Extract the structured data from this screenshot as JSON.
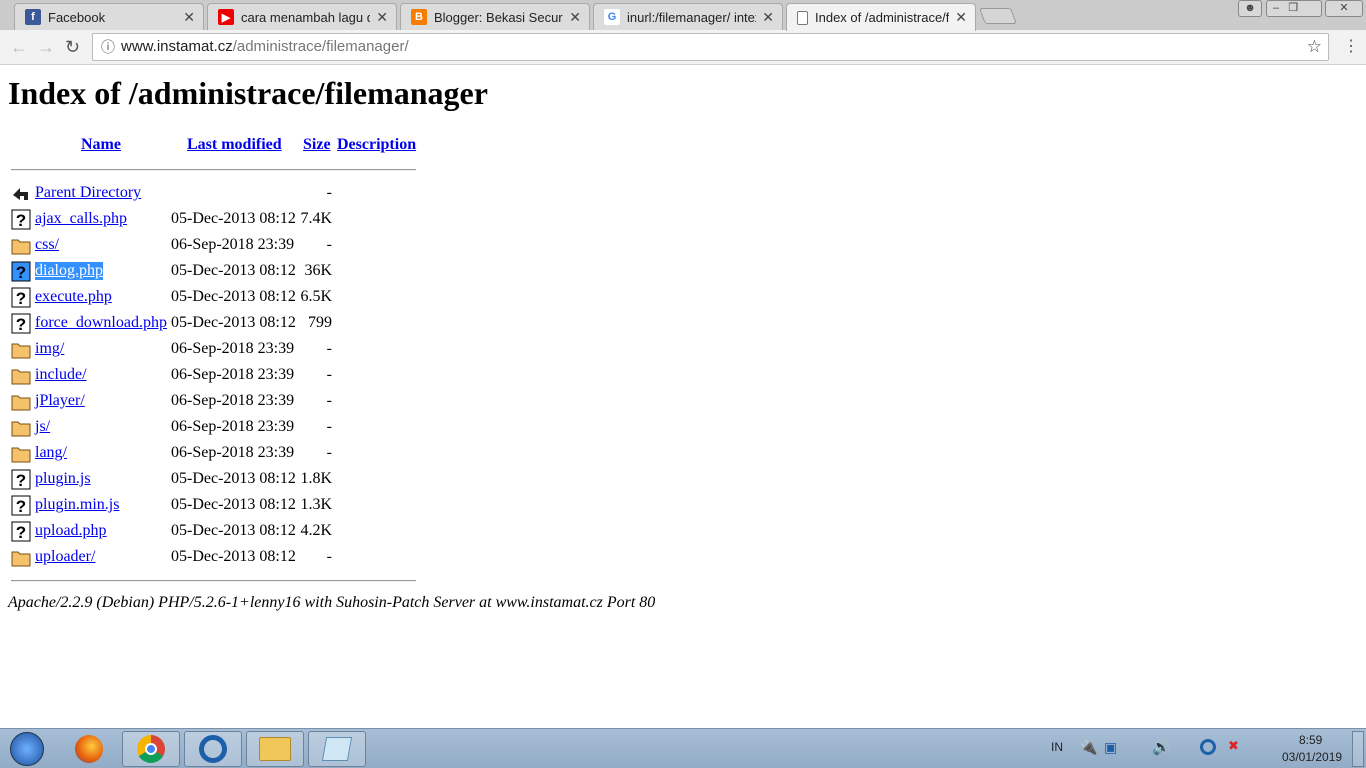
{
  "browser": {
    "tabs": [
      {
        "title": "Facebook",
        "icon": "facebook-icon",
        "color": "#3b5998",
        "glyph": "f"
      },
      {
        "title": "cara menambah lagu di b",
        "icon": "youtube-icon",
        "color": "#e00",
        "glyph": "▶"
      },
      {
        "title": "Blogger: Bekasi Security I",
        "icon": "blogger-icon",
        "color": "#f57d00",
        "glyph": "B"
      },
      {
        "title": "inurl:/filemanager/ intext",
        "icon": "google-icon",
        "color": "#fff",
        "glyph": "G"
      },
      {
        "title": "Index of /administrace/fil",
        "icon": "page-icon",
        "color": "#fff",
        "glyph": ""
      }
    ],
    "url_host": "www.instamat.cz",
    "url_path": "/administrace/filemanager/"
  },
  "page": {
    "title": "Index of /administrace/filemanager",
    "columns": {
      "name": "Name",
      "modified": "Last modified",
      "size": "Size",
      "description": "Description"
    },
    "rows": [
      {
        "name": "Parent Directory",
        "date": "",
        "size": "-",
        "type": "back"
      },
      {
        "name": "ajax_calls.php",
        "date": "05-Dec-2013 08:12",
        "size": "7.4K",
        "type": "file"
      },
      {
        "name": "css/",
        "date": "06-Sep-2018 23:39",
        "size": "-",
        "type": "folder"
      },
      {
        "name": "dialog.php",
        "date": "05-Dec-2013 08:12",
        "size": "36K",
        "type": "file",
        "selected": true
      },
      {
        "name": "execute.php",
        "date": "05-Dec-2013 08:12",
        "size": "6.5K",
        "type": "file"
      },
      {
        "name": "force_download.php",
        "date": "05-Dec-2013 08:12",
        "size": "799",
        "type": "file"
      },
      {
        "name": "img/",
        "date": "06-Sep-2018 23:39",
        "size": "-",
        "type": "folder"
      },
      {
        "name": "include/",
        "date": "06-Sep-2018 23:39",
        "size": "-",
        "type": "folder"
      },
      {
        "name": "jPlayer/",
        "date": "06-Sep-2018 23:39",
        "size": "-",
        "type": "folder"
      },
      {
        "name": "js/",
        "date": "06-Sep-2018 23:39",
        "size": "-",
        "type": "folder"
      },
      {
        "name": "lang/",
        "date": "06-Sep-2018 23:39",
        "size": "-",
        "type": "folder"
      },
      {
        "name": "plugin.js",
        "date": "05-Dec-2013 08:12",
        "size": "1.8K",
        "type": "file"
      },
      {
        "name": "plugin.min.js",
        "date": "05-Dec-2013 08:12",
        "size": "1.3K",
        "type": "file"
      },
      {
        "name": "upload.php",
        "date": "05-Dec-2013 08:12",
        "size": "4.2K",
        "type": "file"
      },
      {
        "name": "uploader/",
        "date": "05-Dec-2013 08:12",
        "size": "-",
        "type": "folder"
      }
    ],
    "footer": "Apache/2.2.9 (Debian) PHP/5.2.6-1+lenny16 with Suhosin-Patch Server at www.instamat.cz Port 80"
  },
  "taskbar": {
    "language": "IN",
    "time": "8:59",
    "date": "03/01/2019"
  }
}
